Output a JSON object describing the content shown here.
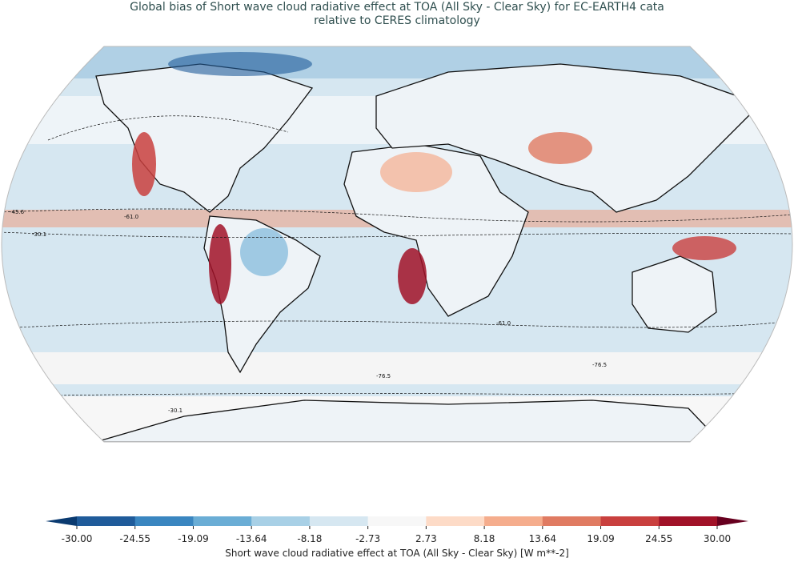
{
  "title": {
    "line1": "Global bias of Short wave cloud radiative effect at TOA (All Sky - Clear Sky) for EC-EARTH4 cata",
    "line2": "relative to CERES climatology"
  },
  "map": {
    "projection": "Robinson",
    "contour_labels": [
      "-30.1",
      "-45.6",
      "-61.0",
      "-76.5"
    ]
  },
  "colorbar": {
    "label": "Short wave cloud radiative effect at TOA (All Sky - Clear Sky) [W m**-2]",
    "ticks": [
      "-30.00",
      "-24.55",
      "-19.09",
      "-13.64",
      "-8.18",
      "-2.73",
      "2.73",
      "8.18",
      "13.64",
      "19.09",
      "24.55",
      "30.00"
    ],
    "extend": "both",
    "colors": [
      "#0a3a70",
      "#1f5b9a",
      "#3a86c0",
      "#6aadd5",
      "#a8d0e6",
      "#d6e7f1",
      "#f7f7f7",
      "#fddbc7",
      "#f5ad8d",
      "#e07b62",
      "#c9403e",
      "#a11228",
      "#67001f"
    ]
  }
}
